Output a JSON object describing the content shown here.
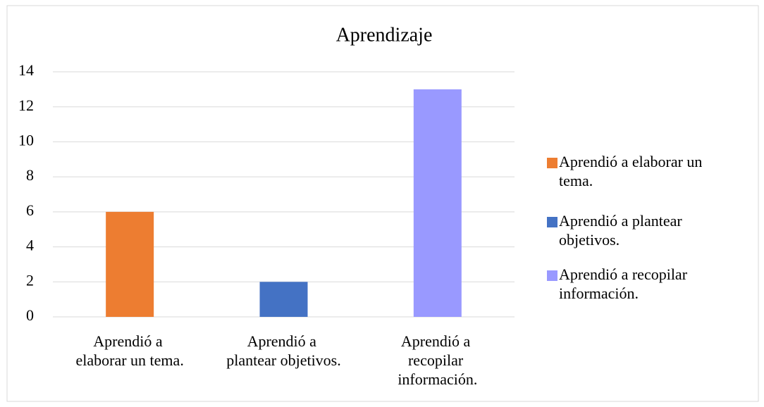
{
  "chart_data": {
    "type": "bar",
    "title": "Aprendizaje",
    "categories": [
      "Aprendió a elaborar un tema.",
      "Aprendió a plantear objetivos.",
      "Aprendió a recopilar información."
    ],
    "values": [
      6,
      2,
      13
    ],
    "colors": [
      "#ed7d31",
      "#4472c4",
      "#9999ff"
    ],
    "ylim": [
      0,
      14
    ],
    "yticks": [
      0,
      2,
      4,
      6,
      8,
      10,
      12,
      14
    ],
    "grid": true,
    "legend": "right"
  }
}
